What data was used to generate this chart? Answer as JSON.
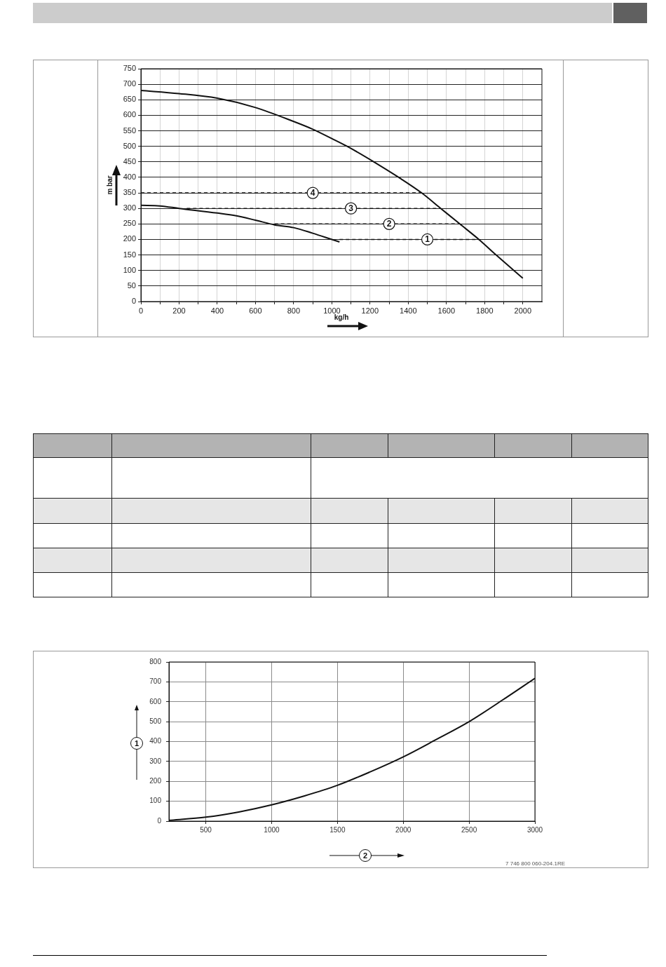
{
  "chart_data": [
    {
      "type": "line",
      "xlabel": "kg/h",
      "ylabel": "m bar",
      "xlim": [
        0,
        2100
      ],
      "xticks": [
        0,
        {
          "value": 100,
          "label": null
        },
        200,
        {
          "value": 300,
          "label": null
        },
        400,
        {
          "value": 500,
          "label": null
        },
        600,
        {
          "value": 700,
          "label": null
        },
        800,
        {
          "value": 900,
          "label": null
        },
        1000,
        {
          "value": 1100,
          "label": null
        },
        1200,
        {
          "value": 1300,
          "label": null
        },
        1400,
        {
          "value": 1500,
          "label": null
        },
        1600,
        {
          "value": 1700,
          "label": null
        },
        1800,
        {
          "value": 1900,
          "label": null
        },
        2000
      ],
      "ylim": [
        0,
        750
      ],
      "yticks": [
        0,
        50,
        100,
        150,
        200,
        250,
        300,
        350,
        400,
        450,
        500,
        550,
        600,
        650,
        700,
        750
      ],
      "grid": true,
      "marker": "none",
      "series": [
        {
          "color": "#111111",
          "x": [
            0,
            200,
            400,
            600,
            800,
            900,
            1000,
            1080,
            1220,
            1350,
            1470,
            1570,
            1670,
            1770,
            1860,
            2000
          ],
          "values": [
            680,
            670,
            655,
            625,
            580,
            555,
            525,
            500,
            450,
            400,
            350,
            300,
            250,
            200,
            150,
            75
          ]
        },
        {
          "color": "#111111",
          "x": [
            0,
            100,
            200,
            400,
            500,
            600,
            700,
            800,
            900,
            1000,
            1040
          ],
          "values": [
            310,
            308,
            300,
            285,
            276,
            262,
            247,
            238,
            220,
            200,
            192
          ]
        },
        {
          "color": "#111111",
          "line_style": "dashed",
          "x": [
            0,
            1470
          ],
          "values": [
            350,
            350
          ]
        },
        {
          "color": "#111111",
          "line_style": "dashed",
          "x": [
            240,
            1570
          ],
          "values": [
            300,
            300
          ]
        },
        {
          "color": "#111111",
          "line_style": "dashed",
          "x": [
            700,
            1670
          ],
          "values": [
            250,
            250
          ]
        },
        {
          "color": "#111111",
          "line_style": "dashed",
          "x": [
            1040,
            1770
          ],
          "values": [
            200,
            200
          ]
        }
      ],
      "annotations": [
        {
          "text": "4",
          "x": 900,
          "y": 350
        },
        {
          "text": "3",
          "x": 1100,
          "y": 300
        },
        {
          "text": "2",
          "x": 1300,
          "y": 250
        },
        {
          "text": "1",
          "x": 1500,
          "y": 200
        }
      ]
    },
    {
      "type": "line",
      "xlabel": "2",
      "ylabel": "1",
      "xlim": [
        220,
        3000
      ],
      "xticks": [
        500,
        1000,
        1500,
        2000,
        2500,
        3000
      ],
      "ylim": [
        0,
        800
      ],
      "yticks": [
        0,
        100,
        200,
        300,
        400,
        500,
        600,
        700,
        800
      ],
      "grid": true,
      "marker": "none",
      "series": [
        {
          "color": "#111111",
          "x": [
            220,
            500,
            750,
            1000,
            1250,
            1500,
            1750,
            2000,
            2250,
            2500,
            2750,
            3000
          ],
          "values": [
            4,
            20,
            46,
            82,
            127,
            180,
            248,
            323,
            410,
            500,
            607,
            718
          ]
        }
      ],
      "annotations": [
        "7 746 800 060-204.1RE"
      ]
    }
  ]
}
